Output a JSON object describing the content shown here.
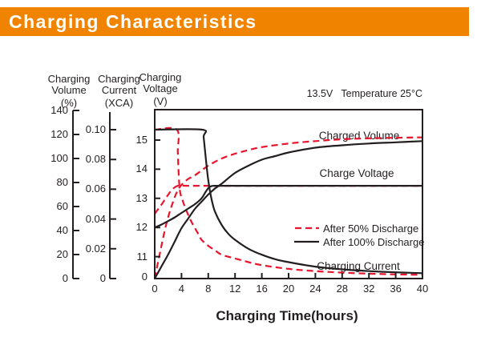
{
  "header": {
    "title": "Charging Characteristics",
    "bg_color": "#f08300",
    "text_color": "#ffffff"
  },
  "chart_data": {
    "type": "line",
    "xlabel": "Charging Time(hours)",
    "x_range": [
      0,
      40
    ],
    "x_ticks": [
      0,
      4,
      8,
      12,
      16,
      20,
      24,
      28,
      32,
      36,
      40
    ],
    "annotation": "13.5V   Temperature 25°C",
    "grid": "off",
    "legend_position": "inside-right",
    "axes": {
      "volume": {
        "title": "Charging\nVolume",
        "unit": "(%)",
        "range": [
          0,
          140
        ],
        "ticks": [
          "140",
          "120",
          "100",
          "80",
          "60",
          "40",
          "20",
          "0"
        ]
      },
      "current": {
        "title": "Charging\nCurrent",
        "unit": "(XCA)",
        "range": [
          0,
          0.1
        ],
        "ticks": [
          "0.10",
          "0.08",
          "0.06",
          "0.04",
          "0.02",
          "0"
        ]
      },
      "voltage": {
        "title": "Charging\nVoltage",
        "unit": "(V)",
        "range": [
          11,
          15.5
        ],
        "ticks": [
          "15",
          "14",
          "13",
          "12",
          "11"
        ],
        "zero_label": "0"
      }
    },
    "curve_labels": {
      "charged_volume": "Charged Volume",
      "charge_voltage": "Charge Voltage",
      "charging_current": "Charging Current"
    },
    "legend": [
      {
        "label": "After 50% Discharge",
        "style": "dashed",
        "color": "#e8142d"
      },
      {
        "label": "After 100% Discharge",
        "style": "solid",
        "color": "#231f20"
      }
    ],
    "series": [
      {
        "key": "charged-volume-after-50-discharge",
        "name": "Charged Volume — After 50% Discharge",
        "axis": "volume",
        "color": "#e8142d",
        "dash": true,
        "points": [
          [
            0,
            0
          ],
          [
            0.5,
            14
          ],
          [
            1,
            27
          ],
          [
            1.5,
            40
          ],
          [
            2,
            51
          ],
          [
            2.5,
            60
          ],
          [
            3,
            68
          ],
          [
            3.5,
            74
          ],
          [
            4,
            78
          ],
          [
            5,
            83
          ],
          [
            6,
            86
          ],
          [
            8,
            94
          ],
          [
            10,
            100
          ],
          [
            12,
            104
          ],
          [
            14,
            107
          ],
          [
            16,
            109.5
          ],
          [
            20,
            112.5
          ],
          [
            24,
            114.5
          ],
          [
            28,
            116
          ],
          [
            32,
            116.8
          ],
          [
            36,
            117.3
          ],
          [
            40,
            117.6
          ]
        ]
      },
      {
        "key": "charge-voltage-after-50-discharge",
        "name": "Charge Voltage — After 50% Discharge",
        "axis": "voltage",
        "color": "#e8142d",
        "dash": true,
        "points": [
          [
            0,
            12.47
          ],
          [
            0.5,
            12.63
          ],
          [
            1,
            12.78
          ],
          [
            1.5,
            12.95
          ],
          [
            2,
            13.12
          ],
          [
            2.5,
            13.28
          ],
          [
            3,
            13.38
          ],
          [
            3.5,
            13.43
          ],
          [
            5,
            13.43
          ],
          [
            10,
            13.43
          ],
          [
            20,
            13.43
          ],
          [
            40,
            13.43
          ]
        ]
      },
      {
        "key": "charging-current-after-50-discharge",
        "name": "Charging Current — After 50% Discharge",
        "axis": "current",
        "color": "#e8142d",
        "dash": true,
        "points": [
          [
            0,
            0.1
          ],
          [
            3.3,
            0.1
          ],
          [
            3.45,
            0.085
          ],
          [
            3.6,
            0.068
          ],
          [
            3.8,
            0.058
          ],
          [
            4.2,
            0.052
          ],
          [
            4.7,
            0.046
          ],
          [
            5.5,
            0.038
          ],
          [
            6.5,
            0.03
          ],
          [
            7,
            0.026
          ],
          [
            8,
            0.022
          ],
          [
            9,
            0.019
          ],
          [
            10,
            0.016
          ],
          [
            12,
            0.0135
          ],
          [
            14,
            0.011
          ],
          [
            16,
            0.009
          ],
          [
            20,
            0.0065
          ],
          [
            24,
            0.005
          ],
          [
            28,
            0.004
          ],
          [
            32,
            0.0033
          ],
          [
            36,
            0.0028
          ],
          [
            40,
            0.0025
          ]
        ]
      },
      {
        "key": "charged-volume-after-100-discharge",
        "name": "Charged Volume — After 100% Discharge",
        "axis": "volume",
        "color": "#231f20",
        "dash": false,
        "points": [
          [
            0,
            0
          ],
          [
            1,
            10
          ],
          [
            2,
            20
          ],
          [
            3,
            31
          ],
          [
            4,
            42
          ],
          [
            5,
            50
          ],
          [
            6,
            58
          ],
          [
            7,
            64
          ],
          [
            8,
            70
          ],
          [
            9,
            75
          ],
          [
            10,
            79
          ],
          [
            12,
            88
          ],
          [
            14,
            94
          ],
          [
            16,
            99
          ],
          [
            18,
            102
          ],
          [
            20,
            105
          ],
          [
            24,
            109
          ],
          [
            28,
            111
          ],
          [
            32,
            112.5
          ],
          [
            36,
            113.5
          ],
          [
            40,
            114.5
          ]
        ]
      },
      {
        "key": "charge-voltage-after-100-discharge",
        "name": "Charge Voltage — After 100% Discharge",
        "axis": "voltage",
        "color": "#231f20",
        "dash": false,
        "points": [
          [
            0,
            12.0
          ],
          [
            1,
            12.1
          ],
          [
            2,
            12.22
          ],
          [
            3,
            12.35
          ],
          [
            4,
            12.5
          ],
          [
            5,
            12.65
          ],
          [
            6,
            12.8
          ],
          [
            7,
            13.0
          ],
          [
            7.5,
            13.18
          ],
          [
            8,
            13.35
          ],
          [
            8.5,
            13.42
          ],
          [
            10,
            13.43
          ],
          [
            20,
            13.43
          ],
          [
            40,
            13.43
          ]
        ]
      },
      {
        "key": "charging-current-after-100-discharge",
        "name": "Charging Current — After 100% Discharge",
        "axis": "current",
        "color": "#231f20",
        "dash": false,
        "points": [
          [
            0,
            0.1
          ],
          [
            7.1,
            0.1
          ],
          [
            7.3,
            0.095
          ],
          [
            7.6,
            0.082
          ],
          [
            8,
            0.066
          ],
          [
            8.5,
            0.053
          ],
          [
            9,
            0.045
          ],
          [
            10,
            0.036
          ],
          [
            11,
            0.03
          ],
          [
            12,
            0.026
          ],
          [
            14,
            0.02
          ],
          [
            16,
            0.016
          ],
          [
            18,
            0.013
          ],
          [
            20,
            0.011
          ],
          [
            24,
            0.008
          ],
          [
            28,
            0.0062
          ],
          [
            32,
            0.005
          ],
          [
            36,
            0.0042
          ],
          [
            40,
            0.0036
          ]
        ]
      }
    ]
  }
}
